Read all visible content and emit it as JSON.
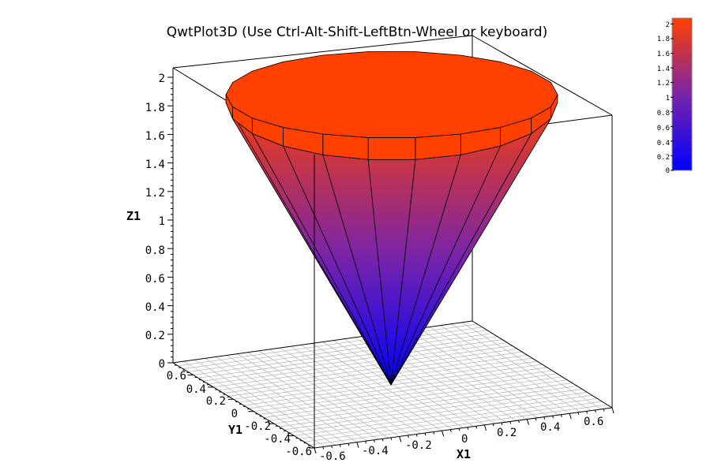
{
  "window": {
    "title": "QwtPlot3D (Use Ctrl-Alt-Shift-LeftBtn-Wheel or keyboard)"
  },
  "axes": {
    "x_label": "X1",
    "y_label": "Y1",
    "z_label": "Z1",
    "x_ticks": [
      "-0.6",
      "-0.4",
      "-0.2",
      "0",
      "0.2",
      "0.4",
      "0.6"
    ],
    "y_ticks": [
      "-0.6",
      "-0.4",
      "-0.2",
      "0",
      "0.2",
      "0.4",
      "0.6"
    ],
    "z_ticks": [
      "0",
      "0.2",
      "0.4",
      "0.6",
      "0.8",
      "1",
      "1.2",
      "1.4",
      "1.6",
      "1.8",
      "2"
    ]
  },
  "colorbar": {
    "ticks": [
      "0",
      "0.2",
      "0.4",
      "0.6",
      "0.8",
      "1",
      "1.2",
      "1.4",
      "1.6",
      "1.8",
      "2"
    ],
    "min_color": "#0000ff",
    "mid_color": "#7a24a8",
    "max_color": "#ff4000"
  },
  "chart_data": {
    "type": "surface",
    "surface": "cone",
    "xlim": [
      -0.7,
      0.7
    ],
    "ylim": [
      -0.7,
      0.7
    ],
    "zlim": [
      0,
      2
    ],
    "apex": [
      0,
      0,
      0
    ],
    "rim_height": 2,
    "mesh_color": "#000000",
    "floor_grid_color": "#bcbcbc"
  }
}
